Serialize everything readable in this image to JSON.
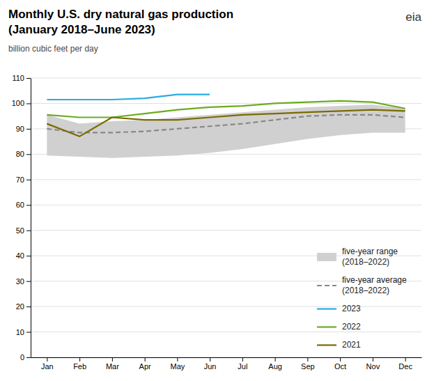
{
  "chart_data": {
    "type": "line",
    "title": "Monthly U.S. dry natural gas production\n(January 2018–June 2023)",
    "subtitle": "billion cubic feet per day",
    "annotations": [
      {
        "text": "eia",
        "color": "#333333"
      }
    ],
    "categories": [
      "Jan",
      "Feb",
      "Mar",
      "Apr",
      "May",
      "Jun",
      "Jul",
      "Aug",
      "Sep",
      "Oct",
      "Nov",
      "Dec"
    ],
    "series": [
      {
        "name": "five-year range\n(2018–2022)",
        "type": "area",
        "color": "#D0D0D0",
        "low": [
          79.5,
          79.0,
          78.5,
          79.0,
          79.5,
          80.5,
          82.0,
          84.0,
          86.0,
          87.5,
          88.5,
          88.5
        ],
        "high": [
          95.5,
          92.0,
          93.0,
          93.5,
          94.5,
          95.5,
          96.5,
          97.5,
          98.5,
          99.0,
          99.5,
          98.0
        ]
      },
      {
        "name": "five-year average\n(2018–2022)",
        "type": "line",
        "line_style": "dashed",
        "color": "#888888",
        "values": [
          90.0,
          88.5,
          88.5,
          89.0,
          90.0,
          91.0,
          92.0,
          93.5,
          95.0,
          95.5,
          95.5,
          94.5
        ]
      },
      {
        "name": "2023",
        "type": "line",
        "line_style": "solid",
        "color": "#29ABE2",
        "values": [
          101.5,
          101.5,
          101.5,
          102.0,
          103.5,
          103.5,
          null,
          null,
          null,
          null,
          null,
          null
        ]
      },
      {
        "name": "2022",
        "type": "line",
        "line_style": "solid",
        "color": "#6AAC20",
        "values": [
          95.5,
          94.5,
          94.5,
          96.0,
          97.5,
          98.5,
          99.0,
          100.0,
          100.5,
          101.0,
          100.5,
          98.0
        ]
      },
      {
        "name": "2021",
        "type": "line",
        "line_style": "solid",
        "color": "#7A6A00",
        "values": [
          92.0,
          87.0,
          94.5,
          93.5,
          93.5,
          94.5,
          95.5,
          96.0,
          96.5,
          97.0,
          97.5,
          97.0
        ]
      }
    ],
    "ylim": [
      0,
      110
    ],
    "yticks": [
      0,
      10,
      20,
      30,
      40,
      50,
      60,
      70,
      80,
      90,
      100,
      110
    ],
    "grid": true,
    "legend": "lower right"
  }
}
